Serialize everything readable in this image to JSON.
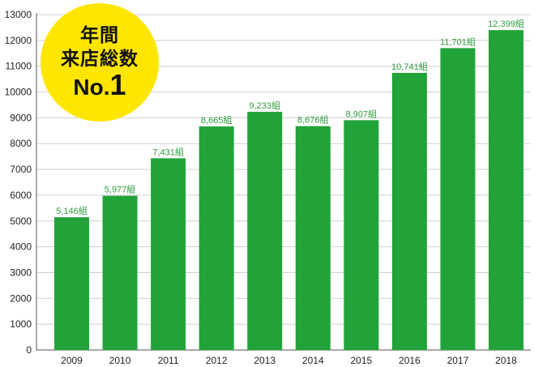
{
  "chart_data": {
    "type": "bar",
    "categories": [
      "2009",
      "2010",
      "2011",
      "2012",
      "2013",
      "2014",
      "2015",
      "2016",
      "2017",
      "2018"
    ],
    "values": [
      5146,
      5977,
      7431,
      8665,
      9233,
      8676,
      8907,
      10741,
      11701,
      12399
    ],
    "data_labels": [
      "5,146組",
      "5,977組",
      "7,431組",
      "8,665組",
      "9,233組",
      "8,676組",
      "8,907組",
      "10,741組",
      "11,701組",
      "12,399組"
    ],
    "yticks": [
      "0",
      "1000",
      "2000",
      "3000",
      "4000",
      "5000",
      "6000",
      "7000",
      "8000",
      "9000",
      "10000",
      "11000",
      "12000",
      "13000"
    ],
    "ylim": [
      0,
      13000
    ],
    "title": "",
    "xlabel": "",
    "ylabel": "",
    "grid": true,
    "colors": {
      "bar": "#22a33a",
      "label": "#2e9e3e"
    }
  },
  "badge": {
    "line1": "年間",
    "line2": "来店総数",
    "rank_prefix": "No.",
    "rank_number": "1",
    "color": "#ffe600"
  }
}
